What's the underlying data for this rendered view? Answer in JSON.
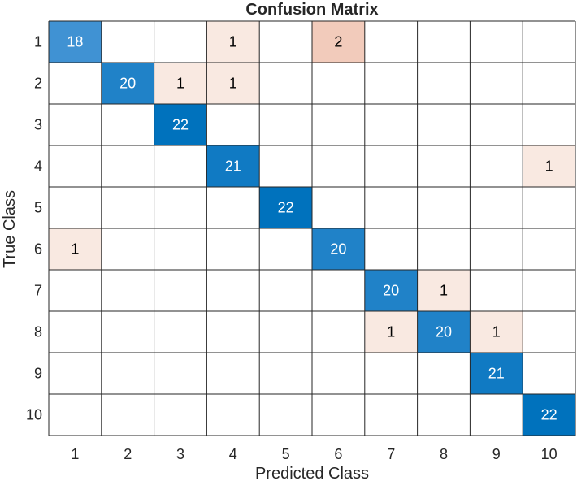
{
  "chart_data": {
    "type": "heatmap",
    "title": "Confusion Matrix",
    "xlabel": "Predicted Class",
    "ylabel": "True Class",
    "x_categories": [
      "1",
      "2",
      "3",
      "4",
      "5",
      "6",
      "7",
      "8",
      "9",
      "10"
    ],
    "y_categories": [
      "1",
      "2",
      "3",
      "4",
      "5",
      "6",
      "7",
      "8",
      "9",
      "10"
    ],
    "values": [
      [
        18,
        0,
        0,
        1,
        0,
        2,
        0,
        0,
        0,
        0
      ],
      [
        0,
        20,
        1,
        1,
        0,
        0,
        0,
        0,
        0,
        0
      ],
      [
        0,
        0,
        22,
        0,
        0,
        0,
        0,
        0,
        0,
        0
      ],
      [
        0,
        0,
        0,
        21,
        0,
        0,
        0,
        0,
        0,
        1
      ],
      [
        0,
        0,
        0,
        0,
        22,
        0,
        0,
        0,
        0,
        0
      ],
      [
        1,
        0,
        0,
        0,
        0,
        20,
        0,
        0,
        0,
        0
      ],
      [
        0,
        0,
        0,
        0,
        0,
        0,
        20,
        1,
        0,
        0
      ],
      [
        0,
        0,
        0,
        0,
        0,
        0,
        1,
        20,
        1,
        0
      ],
      [
        0,
        0,
        0,
        0,
        0,
        0,
        0,
        0,
        21,
        0
      ],
      [
        0,
        0,
        0,
        0,
        0,
        0,
        0,
        0,
        0,
        22
      ]
    ],
    "empty_cells_unlabeled": true,
    "colors": {
      "diagonal_min": "#4092d3",
      "diagonal_max": "#0072bd",
      "off_diagonal_min": "#f9e9e1",
      "off_diagonal_max": "#f2cbbb",
      "empty": "#ffffff",
      "grid": "#262626",
      "diagonal_text": "#ffffff",
      "off_diagonal_text": "#000000"
    },
    "grid": true,
    "legend": "none"
  }
}
